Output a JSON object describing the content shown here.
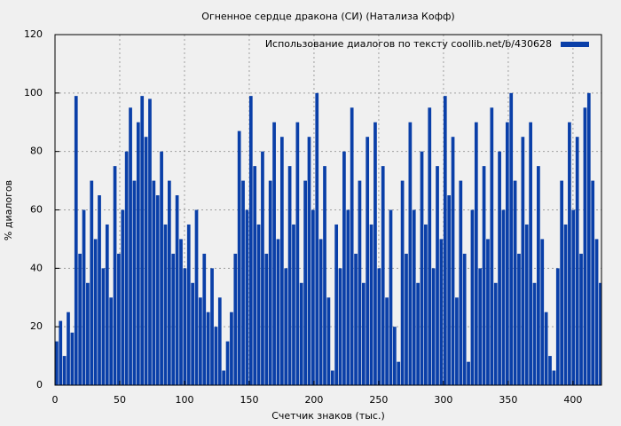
{
  "chart_data": {
    "type": "bar",
    "title": "Огненное сердце дракона (СИ) (Натализа Кофф)",
    "x_label": "Счетчик знаков (тыс.)",
    "y_label": "% диалогов",
    "series": [
      {
        "name": "Использование диалогов по тексту  coollib.net/b/430628",
        "color": "#0a3fa8",
        "x": [
          0,
          3,
          6,
          9,
          12,
          15,
          18,
          21,
          24,
          27,
          30,
          33,
          36,
          39,
          42,
          45,
          48,
          51,
          54,
          57,
          60,
          63,
          66,
          69,
          72,
          75,
          78,
          81,
          84,
          87,
          90,
          93,
          96,
          99,
          102,
          105,
          108,
          111,
          114,
          117,
          120,
          123,
          126,
          129,
          132,
          135,
          138,
          141,
          144,
          147,
          150,
          153,
          156,
          159,
          162,
          165,
          168,
          171,
          174,
          177,
          180,
          183,
          186,
          189,
          192,
          195,
          198,
          201,
          204,
          207,
          210,
          213,
          216,
          219,
          222,
          225,
          228,
          231,
          234,
          237,
          240,
          243,
          246,
          249,
          252,
          255,
          258,
          261,
          264,
          267,
          270,
          273,
          276,
          279,
          282,
          285,
          288,
          291,
          294,
          297,
          300,
          303,
          306,
          309,
          312,
          315,
          318,
          321,
          324,
          327,
          330,
          333,
          336,
          339,
          342,
          345,
          348,
          351,
          354,
          357,
          360,
          363,
          366,
          369,
          372,
          375,
          378,
          381,
          384,
          387,
          390,
          393,
          396,
          399,
          402,
          405,
          408,
          411,
          414,
          417,
          420
        ],
        "values": [
          15,
          22,
          10,
          25,
          18,
          99,
          45,
          60,
          35,
          70,
          50,
          65,
          40,
          55,
          30,
          75,
          45,
          60,
          80,
          95,
          70,
          90,
          99,
          85,
          98,
          70,
          65,
          80,
          55,
          70,
          45,
          65,
          50,
          40,
          55,
          35,
          60,
          30,
          45,
          25,
          40,
          20,
          30,
          5,
          15,
          25,
          45,
          87,
          70,
          60,
          99,
          75,
          55,
          80,
          45,
          70,
          90,
          50,
          85,
          40,
          75,
          55,
          90,
          35,
          70,
          85,
          60,
          100,
          50,
          75,
          30,
          5,
          55,
          40,
          80,
          60,
          95,
          45,
          70,
          35,
          85,
          55,
          90,
          40,
          75,
          30,
          60,
          20,
          8,
          70,
          45,
          90,
          60,
          35,
          80,
          55,
          95,
          40,
          75,
          50,
          99,
          65,
          85,
          30,
          70,
          45,
          8,
          60,
          90,
          40,
          75,
          50,
          95,
          35,
          80,
          60,
          90,
          100,
          70,
          45,
          85,
          55,
          90,
          35,
          75,
          50,
          25,
          10,
          5,
          40,
          70,
          55,
          90,
          60,
          85,
          45,
          95,
          100,
          70,
          50,
          35
        ]
      }
    ],
    "xlim": [
      0,
      422
    ],
    "xticks": [
      0,
      50,
      100,
      150,
      200,
      250,
      300,
      350,
      400
    ],
    "ylim": [
      0,
      120
    ],
    "yticks": [
      0,
      20,
      40,
      60,
      80,
      100,
      120
    ],
    "grid": true,
    "legend": "top-right"
  }
}
